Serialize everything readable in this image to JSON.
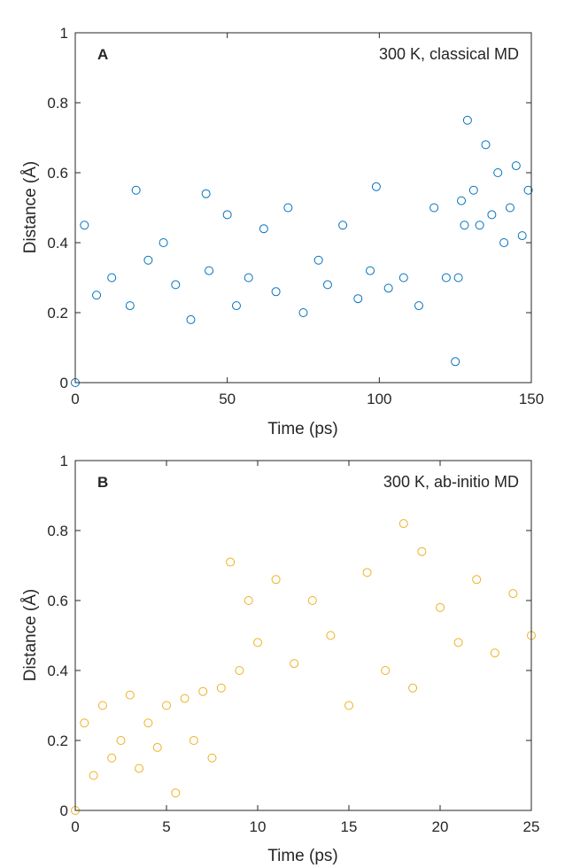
{
  "chart_data": [
    {
      "type": "scatter",
      "panel_label": "A",
      "annotation": "300 K, classical MD",
      "xlabel": "Time (ps)",
      "ylabel": "Distance (Å)",
      "xlim": [
        0,
        150
      ],
      "ylim": [
        0,
        1
      ],
      "xticks": [
        0,
        50,
        100,
        150
      ],
      "yticks": [
        0,
        0.2,
        0.4,
        0.6,
        0.8,
        1
      ],
      "xtick_labels": [
        "0",
        "50",
        "100",
        "150"
      ],
      "ytick_labels": [
        "0",
        "0.2",
        "0.4",
        "0.6",
        "0.8",
        "1"
      ],
      "grid": false,
      "marker": "open-circle",
      "color": "#0072BD",
      "series": [
        {
          "x": [
            0,
            3,
            7,
            12,
            18,
            20,
            24,
            29,
            33,
            38,
            43,
            44,
            50,
            53,
            57,
            62,
            66,
            70,
            75,
            80,
            83,
            88,
            93,
            97,
            99,
            103,
            108,
            113,
            118,
            122,
            125,
            126,
            127,
            128,
            129,
            131,
            133,
            135,
            137,
            139,
            141,
            143,
            145,
            147,
            149
          ],
          "y": [
            0.0,
            0.45,
            0.25,
            0.3,
            0.22,
            0.55,
            0.35,
            0.4,
            0.28,
            0.18,
            0.54,
            0.32,
            0.48,
            0.22,
            0.3,
            0.44,
            0.26,
            0.5,
            0.2,
            0.35,
            0.28,
            0.45,
            0.24,
            0.32,
            0.56,
            0.27,
            0.3,
            0.22,
            0.5,
            0.3,
            0.06,
            0.3,
            0.52,
            0.45,
            0.75,
            0.55,
            0.45,
            0.68,
            0.48,
            0.6,
            0.4,
            0.5,
            0.62,
            0.42,
            0.55
          ]
        }
      ]
    },
    {
      "type": "scatter",
      "panel_label": "B",
      "annotation": "300 K, ab-initio MD",
      "xlabel": "Time (ps)",
      "ylabel": "Distance (Å)",
      "xlim": [
        0,
        25
      ],
      "ylim": [
        0,
        1
      ],
      "xticks": [
        0,
        5,
        10,
        15,
        20,
        25
      ],
      "yticks": [
        0,
        0.2,
        0.4,
        0.6,
        0.8,
        1
      ],
      "xtick_labels": [
        "0",
        "5",
        "10",
        "15",
        "20",
        "25"
      ],
      "ytick_labels": [
        "0",
        "0.2",
        "0.4",
        "0.6",
        "0.8",
        "1"
      ],
      "grid": false,
      "marker": "open-circle",
      "color": "#EDB120",
      "series": [
        {
          "x": [
            0,
            0.5,
            1,
            1.5,
            2,
            2.5,
            3,
            3.5,
            4,
            4.5,
            5,
            5.5,
            6,
            6.5,
            7,
            7.5,
            8,
            8.5,
            9,
            9.5,
            10,
            11,
            12,
            13,
            14,
            15,
            16,
            17,
            18,
            18.5,
            19,
            20,
            21,
            22,
            23,
            24,
            25
          ],
          "y": [
            0.0,
            0.25,
            0.1,
            0.3,
            0.15,
            0.2,
            0.33,
            0.12,
            0.25,
            0.18,
            0.3,
            0.05,
            0.32,
            0.2,
            0.34,
            0.15,
            0.35,
            0.71,
            0.4,
            0.6,
            0.48,
            0.66,
            0.42,
            0.6,
            0.5,
            0.3,
            0.68,
            0.4,
            0.82,
            0.35,
            0.74,
            0.58,
            0.48,
            0.66,
            0.45,
            0.62,
            0.5
          ]
        }
      ]
    }
  ]
}
